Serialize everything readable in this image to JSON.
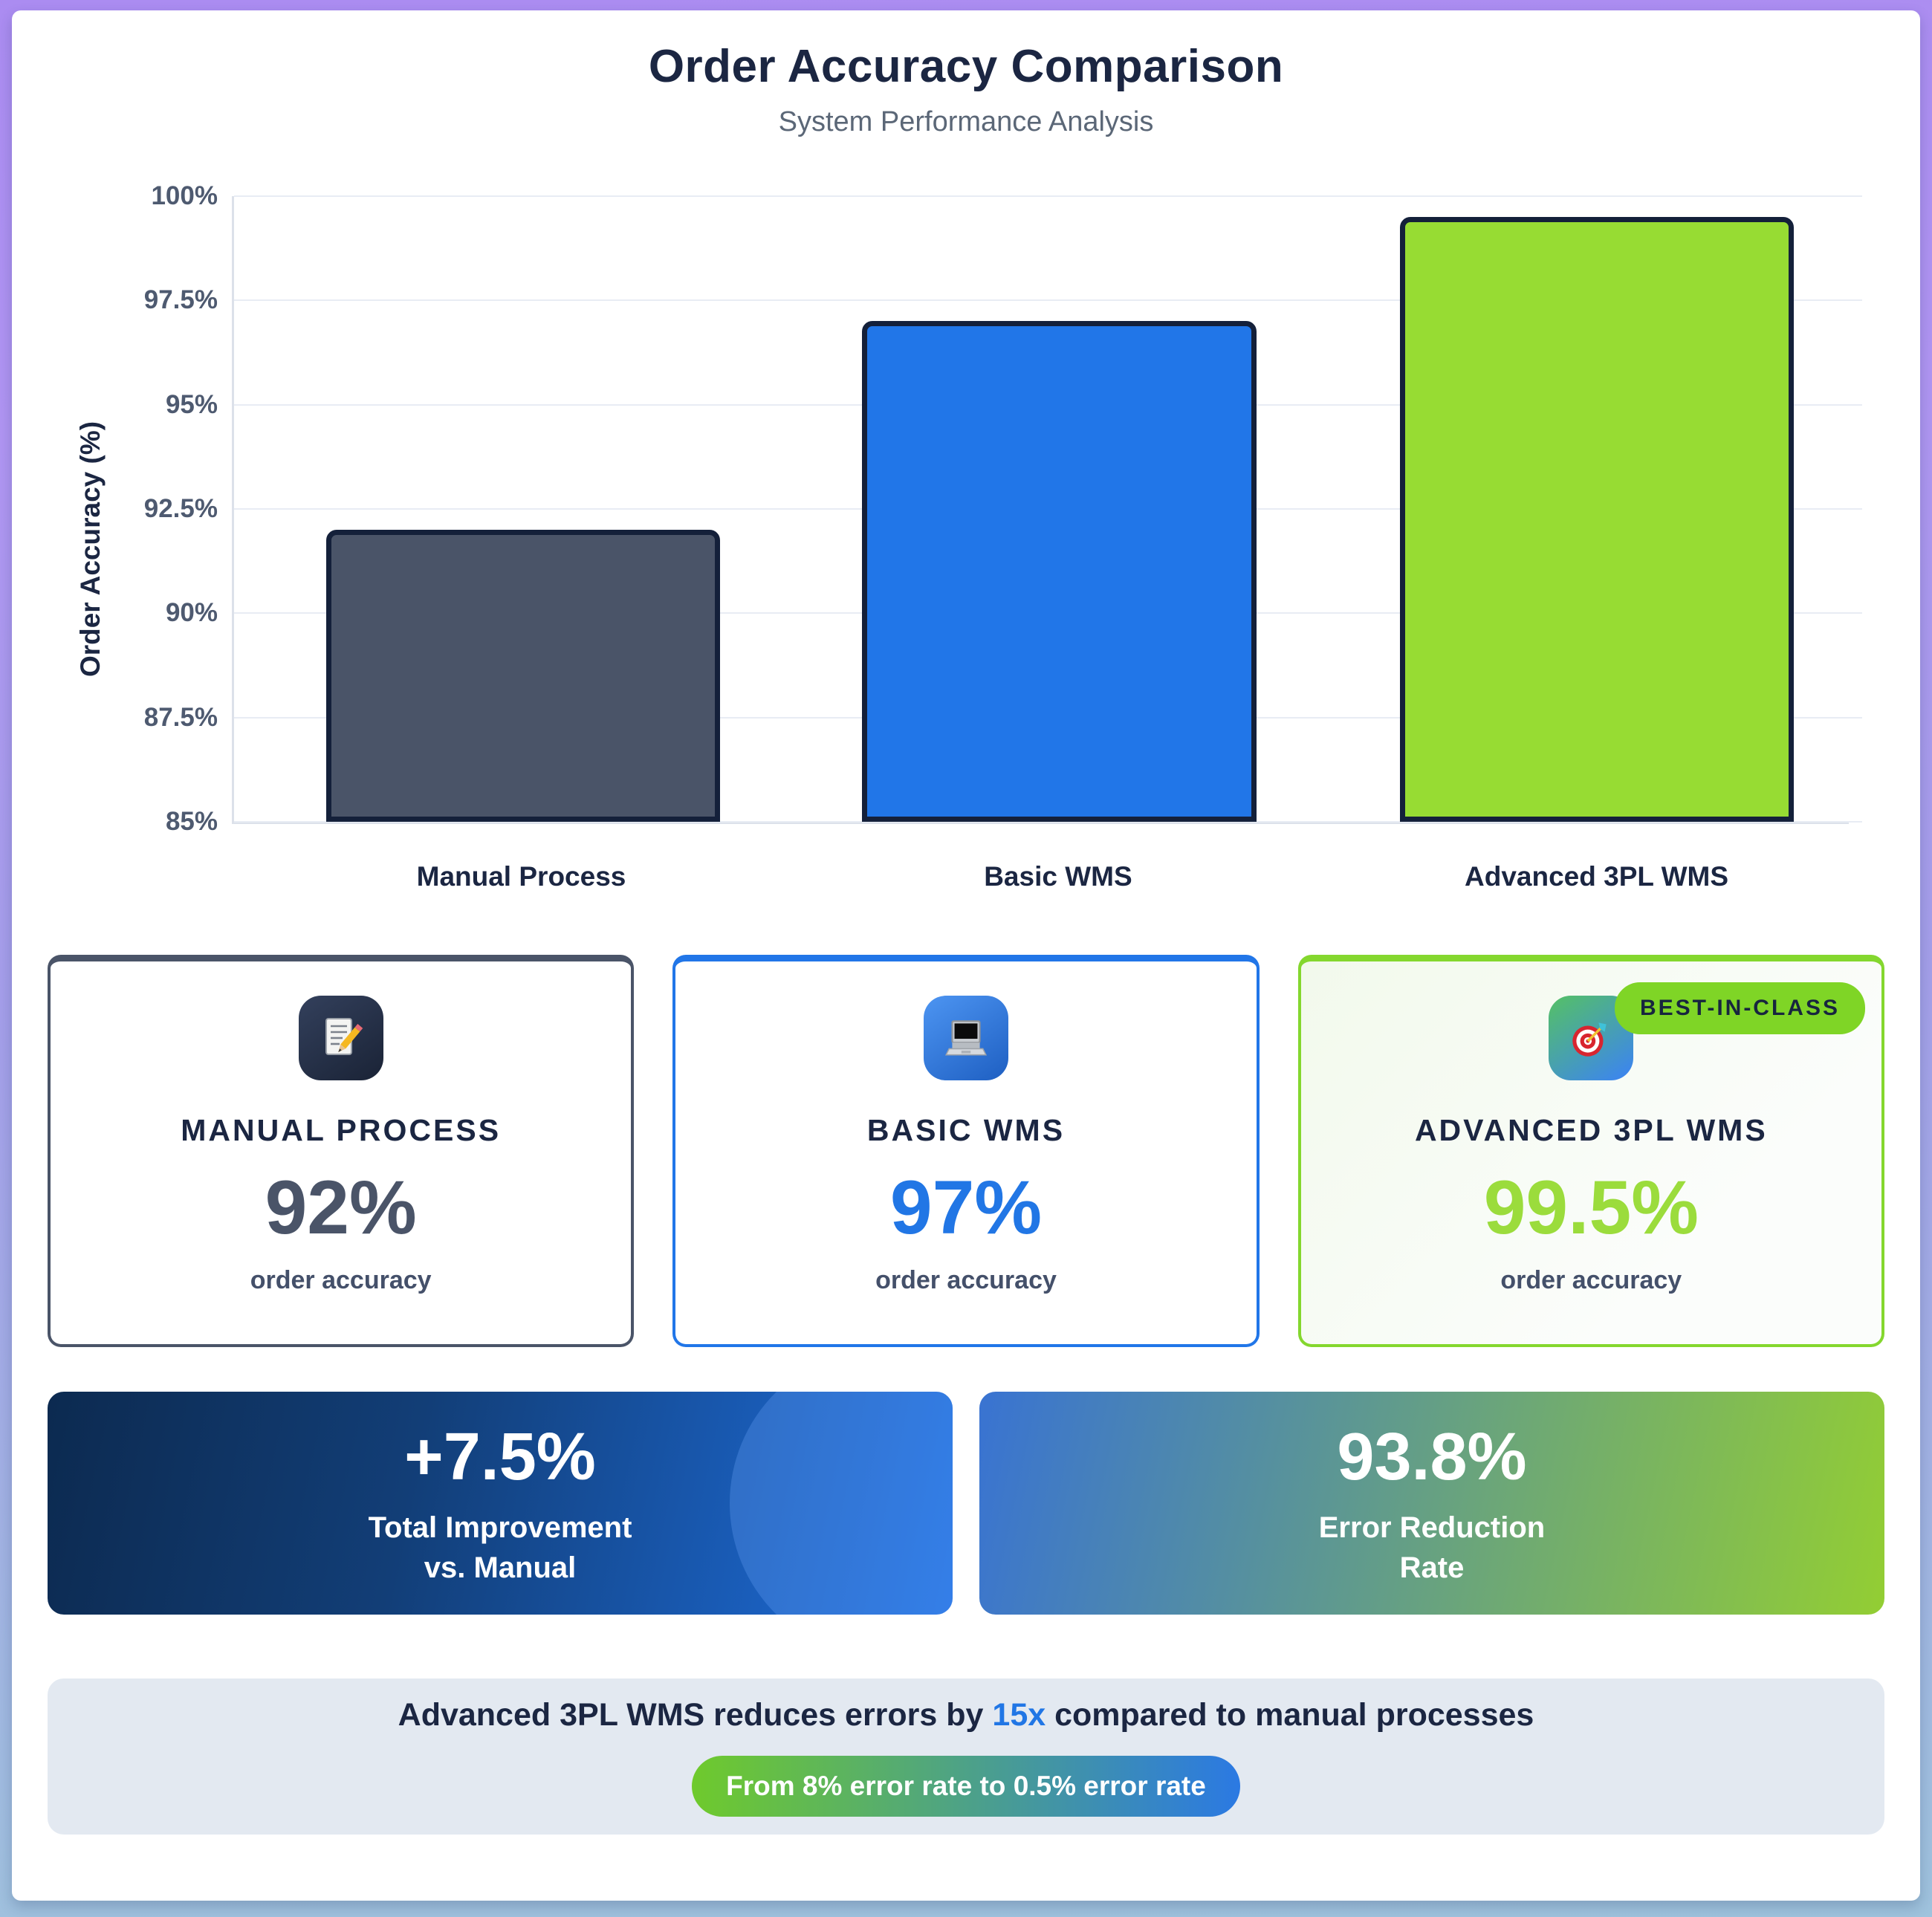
{
  "header": {
    "title": "Order Accuracy Comparison",
    "subtitle": "System Performance Analysis"
  },
  "chart_data": {
    "type": "bar",
    "title": "Order Accuracy Comparison",
    "categories": [
      "Manual Process",
      "Basic WMS",
      "Advanced 3PL WMS"
    ],
    "values": [
      92,
      97,
      99.5
    ],
    "bar_colors": [
      "#4A5468",
      "#2176E8",
      "#97DC33"
    ],
    "bar_border_color": "#14203A",
    "bar_centers_pct": [
      17.9,
      51.1,
      84.4
    ],
    "bar_width_pct": 24.4,
    "xlabel": "",
    "ylabel": "Order Accuracy (%)",
    "ylim": [
      85,
      100
    ],
    "yticks": [
      85,
      87.5,
      90,
      92.5,
      95,
      97.5,
      100
    ],
    "ytick_labels": [
      "85%",
      "87.5%",
      "90%",
      "92.5%",
      "95%",
      "97.5%",
      "100%"
    ],
    "grid": true,
    "legend": false
  },
  "cards": [
    {
      "title": "MANUAL PROCESS",
      "value": "92%",
      "caption": "order accuracy",
      "accent": "#4A5468",
      "icon": "memo-icon"
    },
    {
      "title": "BASIC WMS",
      "value": "97%",
      "caption": "order accuracy",
      "accent": "#2176E8",
      "icon": "laptop-icon"
    },
    {
      "title": "ADVANCED 3PL WMS",
      "value": "99.5%",
      "caption": "order accuracy",
      "accent": "#84D72E",
      "badge": "BEST-IN-CLASS",
      "icon": "target-icon"
    }
  ],
  "banners": [
    {
      "value": "+7.5%",
      "label_line1": "Total Improvement",
      "label_line2": "vs. Manual",
      "gradient_start": "#0C2A50",
      "gradient_end": "#1E6FE0"
    },
    {
      "value": "93.8%",
      "label_line1": "Error Reduction",
      "label_line2": "Rate",
      "gradient_start": "#3973D2",
      "gradient_end": "#93CE33"
    }
  ],
  "footer": {
    "text_before": "Advanced 3PL WMS reduces errors by ",
    "highlight": "15x",
    "text_after": " compared to manual processes",
    "highlight_color": "#2176E5",
    "pill": "From 8% error rate to 0.5% error rate"
  }
}
